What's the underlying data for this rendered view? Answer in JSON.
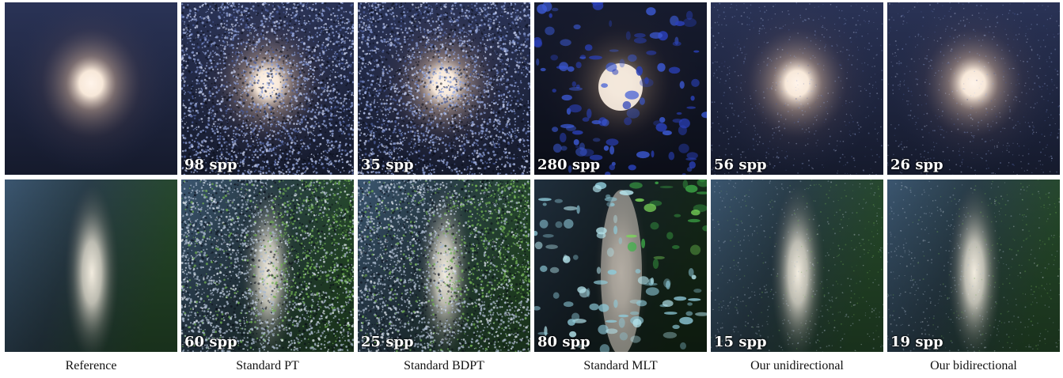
{
  "columns": [
    {
      "caption": "Reference",
      "row1_spp": "",
      "row2_spp": "",
      "noise": "none",
      "icon": "reference-image-icon"
    },
    {
      "caption": "Standard PT",
      "row1_spp": "98 spp",
      "row2_spp": "60 spp",
      "noise": "heavy",
      "icon": "pt-render-icon"
    },
    {
      "caption": "Standard BDPT",
      "row1_spp": "35 spp",
      "row2_spp": "25 spp",
      "noise": "heavy",
      "icon": "bdpt-render-icon"
    },
    {
      "caption": "Standard MLT",
      "row1_spp": "280 spp",
      "row2_spp": "80 spp",
      "noise": "blotchy",
      "icon": "mlt-render-icon"
    },
    {
      "caption": "Our unidirectional",
      "row1_spp": "56 spp",
      "row2_spp": "15 spp",
      "noise": "light",
      "icon": "ours-uni-render-icon"
    },
    {
      "caption": "Our bidirectional",
      "row1_spp": "26 spp",
      "row2_spp": "19 spp",
      "noise": "light",
      "icon": "ours-bi-render-icon"
    }
  ],
  "colors": {
    "scene1_bg": "#283052",
    "scene1_glow": "#fff4ea",
    "scene2_left": "#3b5670",
    "scene2_right": "#264a2a",
    "scene2_beam": "#f2ecdf",
    "text": "#111111"
  }
}
